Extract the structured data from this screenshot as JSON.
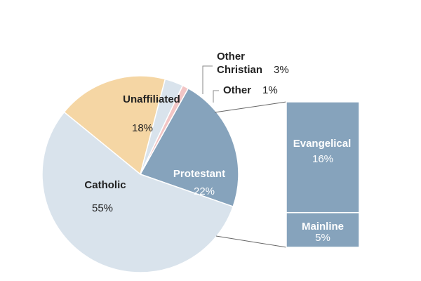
{
  "chart_data": {
    "type": "pie",
    "title": "",
    "unit": "%",
    "slices": [
      {
        "label": "Catholic",
        "value": 55,
        "display": "55%",
        "color": "#d9e3ec"
      },
      {
        "label": "Unaffiliated",
        "value": 18,
        "display": "18%",
        "color": "#f5d6a4"
      },
      {
        "label": "Other Christian",
        "value": 3,
        "display": "3%",
        "color": "#d9e3ec"
      },
      {
        "label": "Other",
        "value": 1,
        "display": "1%",
        "color": "#f2c5c5"
      },
      {
        "label": "Protestant",
        "value": 22,
        "display": "22%",
        "color": "#86a3bc"
      }
    ],
    "breakdown": {
      "of": "Protestant",
      "segments": [
        {
          "label": "Evangelical",
          "value": 16,
          "display": "16%"
        },
        {
          "label": "Mainline",
          "value": 5,
          "display": "5%"
        }
      ],
      "color": "#86a3bc"
    }
  },
  "labels": {
    "other_christian_line1": "Other",
    "other_christian_line2": "Christian",
    "other_christian_value": "3%",
    "other": "Other",
    "other_value": "1%"
  }
}
